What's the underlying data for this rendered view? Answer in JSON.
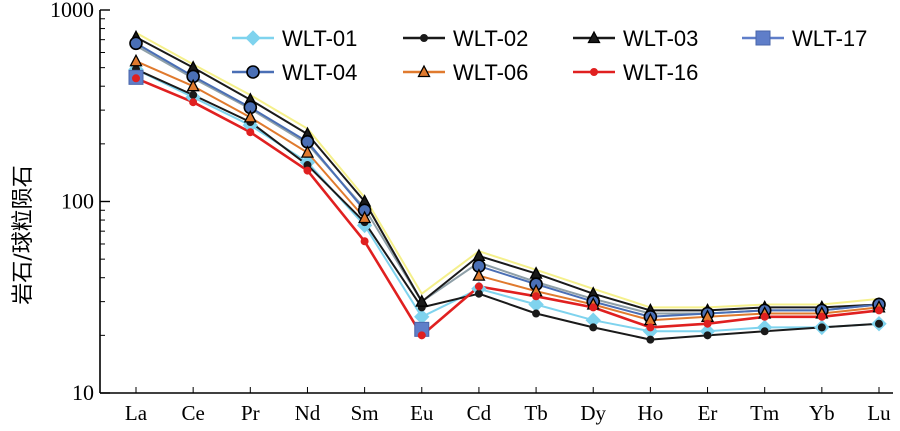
{
  "chart_data": {
    "type": "line",
    "title": "",
    "xlabel": "",
    "ylabel": "岩石/球粒陨石",
    "yscale": "log",
    "ylim": [
      10,
      1000
    ],
    "yticks": [
      10,
      100,
      1000
    ],
    "ytick_labels": [
      "10",
      "100",
      "1000"
    ],
    "grid": false,
    "legend_position": "top-right",
    "categories": [
      "La",
      "Ce",
      "Pr",
      "Nd",
      "Sm",
      "Eu",
      "Cd",
      "Tb",
      "Dy",
      "Ho",
      "Er",
      "Tm",
      "Yb",
      "Lu"
    ],
    "background_series": [
      {
        "color": "#f5f08c",
        "values": [
          760,
          520,
          360,
          240,
          105,
          33,
          55,
          44,
          35,
          28,
          28,
          29,
          29,
          31
        ]
      },
      {
        "color": "#8fa0a8",
        "values": [
          650,
          440,
          305,
          200,
          92,
          30,
          48,
          38,
          31,
          26,
          26,
          27,
          27,
          29
        ]
      }
    ],
    "series": [
      {
        "name": "WLT-01",
        "color": "#7fd3ee",
        "marker": "diamond",
        "values": [
          490,
          350,
          250,
          160,
          75,
          25,
          35,
          29,
          24,
          21,
          21,
          22,
          22,
          23
        ]
      },
      {
        "name": "WLT-02",
        "color": "#1a1a1a",
        "marker": "circle-small",
        "values": [
          490,
          360,
          260,
          155,
          78,
          28,
          33,
          26,
          22,
          19,
          20,
          21,
          22,
          23
        ]
      },
      {
        "name": "WLT-03",
        "color": "#1a1a1a",
        "marker": "triangle",
        "values": [
          720,
          500,
          340,
          225,
          100,
          30,
          52,
          42,
          33,
          27,
          27,
          28,
          28,
          29
        ]
      },
      {
        "name": "WLT-17",
        "color": "#5f7ec9",
        "marker": "square",
        "values": [
          445,
          null,
          null,
          null,
          null,
          21.5,
          null,
          null,
          null,
          null,
          null,
          null,
          null,
          null
        ]
      },
      {
        "name": "WLT-04",
        "color": "#4a6fb5",
        "marker": "circle",
        "values": [
          670,
          450,
          310,
          205,
          90,
          null,
          46,
          37,
          30,
          25,
          26,
          27,
          27,
          29
        ]
      },
      {
        "name": "WLT-06",
        "color": "#e07a2e",
        "marker": "triangle",
        "values": [
          540,
          400,
          275,
          180,
          82,
          null,
          41,
          34,
          29,
          24,
          25,
          26,
          26,
          28
        ]
      },
      {
        "name": "WLT-16",
        "color": "#e02020",
        "marker": "circle-small",
        "values": [
          440,
          330,
          230,
          145,
          62,
          20,
          36,
          32,
          28,
          22,
          23,
          25,
          25,
          27
        ]
      }
    ]
  }
}
